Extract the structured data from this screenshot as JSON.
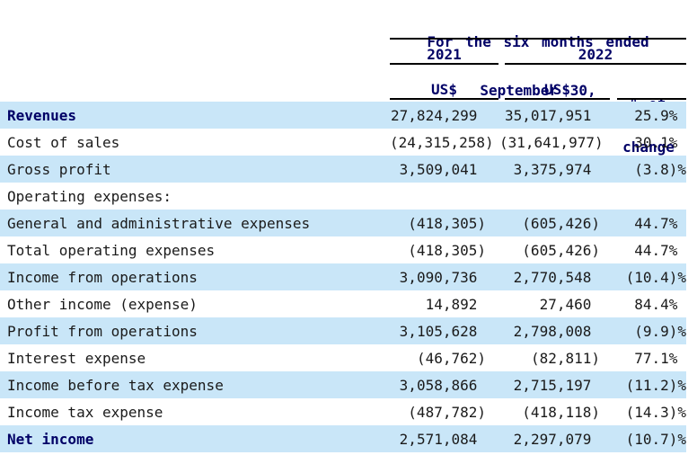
{
  "colors": {
    "row_shaded_bg": "#c9e6f8",
    "heading_text": "#000066",
    "body_text": "#1a1a1a",
    "rule": "#000000",
    "page_bg": "#ffffff"
  },
  "table": {
    "title_line1": "For the six months ended",
    "title_line2": "September 30,",
    "column_groups": [
      "2021",
      "2022"
    ],
    "column_headers": {
      "us_2021": "US$",
      "us_2022": "US$",
      "pct_line1": "% of",
      "pct_line2": "change"
    },
    "rows": [
      {
        "label": "Revenues",
        "v2021": "27,824,299",
        "v2022": "35,017,951",
        "pct": "25.9%",
        "bold": true,
        "shaded": true
      },
      {
        "label": "Cost of sales",
        "v2021": "(24,315,258)",
        "v2022": "(31,641,977)",
        "pct": "30.1%",
        "bold": false,
        "shaded": false
      },
      {
        "label": "Gross profit",
        "v2021": "3,509,041",
        "v2022": "3,375,974",
        "pct": "(3.8)%",
        "bold": false,
        "shaded": true
      },
      {
        "label": "Operating expenses:",
        "v2021": "",
        "v2022": "",
        "pct": "",
        "bold": false,
        "shaded": false
      },
      {
        "label": "General and administrative expenses",
        "v2021": "(418,305)",
        "v2022": "(605,426)",
        "pct": "44.7%",
        "bold": false,
        "shaded": true
      },
      {
        "label": "Total operating expenses",
        "v2021": "(418,305)",
        "v2022": "(605,426)",
        "pct": "44.7%",
        "bold": false,
        "shaded": false
      },
      {
        "label": "Income from operations",
        "v2021": "3,090,736",
        "v2022": "2,770,548",
        "pct": "(10.4)%",
        "bold": false,
        "shaded": true
      },
      {
        "label": "Other income (expense)",
        "v2021": "14,892",
        "v2022": "27,460",
        "pct": "84.4%",
        "bold": false,
        "shaded": false
      },
      {
        "label": "Profit from operations",
        "v2021": "3,105,628",
        "v2022": "2,798,008",
        "pct": "(9.9)%",
        "bold": false,
        "shaded": true
      },
      {
        "label": "Interest expense",
        "v2021": "(46,762)",
        "v2022": "(82,811)",
        "pct": "77.1%",
        "bold": false,
        "shaded": false
      },
      {
        "label": "Income before tax expense",
        "v2021": "3,058,866",
        "v2022": "2,715,197",
        "pct": "(11.2)%",
        "bold": false,
        "shaded": true
      },
      {
        "label": "Income tax expense",
        "v2021": "(487,782)",
        "v2022": "(418,118)",
        "pct": "(14.3)%",
        "bold": false,
        "shaded": false
      },
      {
        "label": "Net income",
        "v2021": "2,571,084",
        "v2022": "2,297,079",
        "pct": "(10.7)%",
        "bold": true,
        "shaded": true
      }
    ]
  }
}
